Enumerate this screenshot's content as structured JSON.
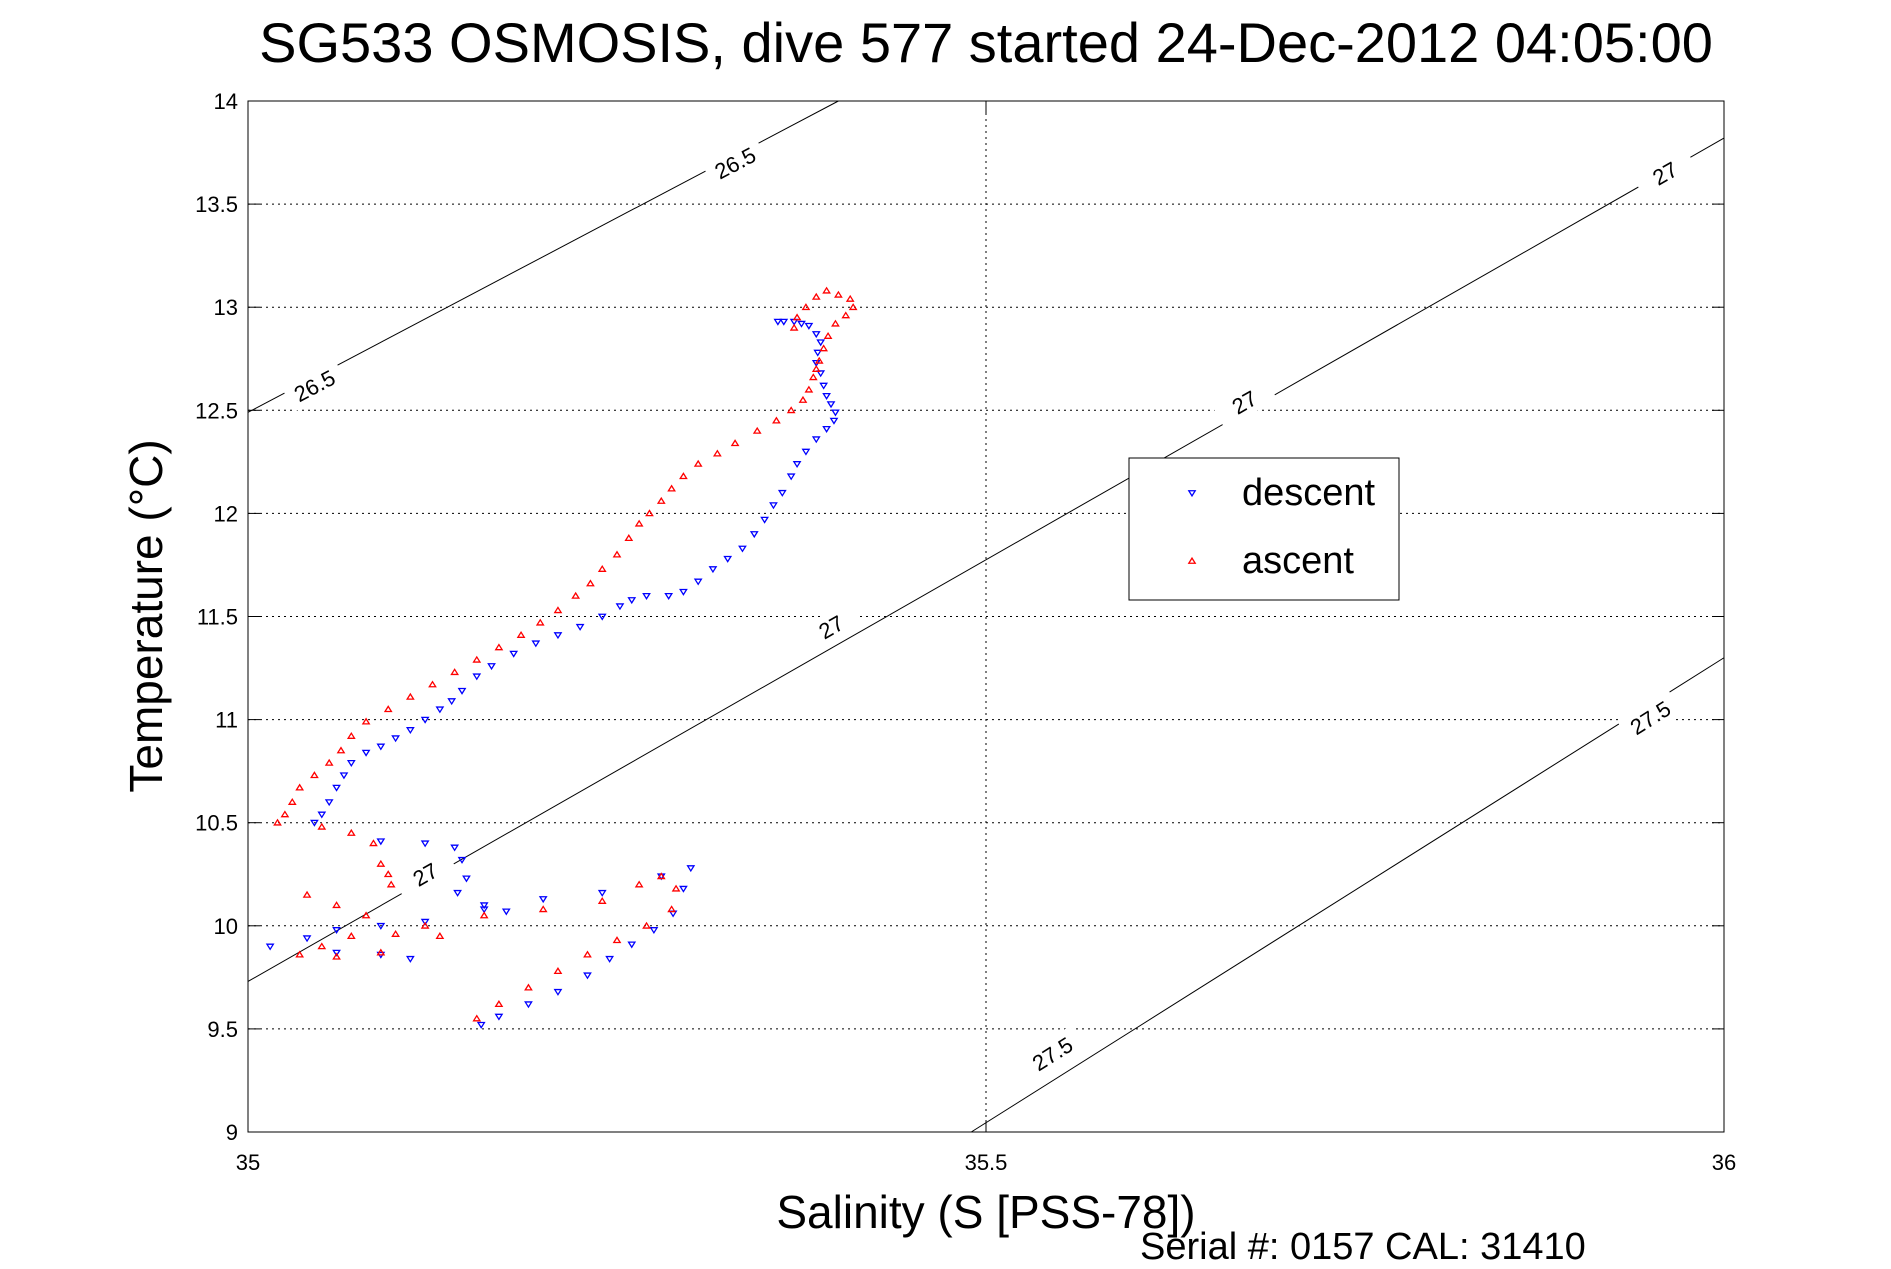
{
  "chart_data": {
    "type": "scatter",
    "title": "SG533 OSMOSIS, dive 577 started 24-Dec-2012 04:05:00",
    "xlabel": "Salinity (S [PSS-78])",
    "ylabel": "Temperature (°C)",
    "xlim": [
      35,
      36
    ],
    "ylim": [
      9,
      14
    ],
    "xticks": [
      "35",
      "35.5",
      "36"
    ],
    "yticks": [
      "9",
      "9.5",
      "10",
      "10.5",
      "11",
      "11.5",
      "12",
      "12.5",
      "13",
      "13.5",
      "14"
    ],
    "xtick_values": [
      35,
      35.5,
      36
    ],
    "ytick_values": [
      9,
      9.5,
      10,
      10.5,
      11,
      11.5,
      12,
      12.5,
      13,
      13.5,
      14
    ],
    "grid": true,
    "legend_position": "upper-right-middle",
    "footer": "Serial #: 0157  CAL: 31410",
    "isopycnals": [
      {
        "label": "26.5",
        "points": [
          [
            35,
            12.49
          ],
          [
            35.4,
            14.0
          ]
        ],
        "label_positions": [
          [
            35.045,
            12.62
          ],
          [
            35.33,
            13.7
          ]
        ]
      },
      {
        "label": "27",
        "points": [
          [
            35,
            9.73
          ],
          [
            36,
            13.82
          ]
        ],
        "label_positions": [
          [
            35.12,
            10.25
          ],
          [
            35.395,
            11.45
          ],
          [
            35.675,
            12.54
          ],
          [
            35.96,
            13.65
          ]
        ]
      },
      {
        "label": "27.5",
        "points": [
          [
            35.49,
            9.0
          ],
          [
            36,
            11.3
          ]
        ],
        "label_positions": [
          [
            35.545,
            9.38
          ],
          [
            35.95,
            11.01
          ]
        ]
      }
    ],
    "series": [
      {
        "name": "descent",
        "color": "#0000ff",
        "marker": "triangle-down",
        "points": [
          [
            35.359,
            12.93
          ],
          [
            35.363,
            12.93
          ],
          [
            35.37,
            12.93
          ],
          [
            35.375,
            12.92
          ],
          [
            35.38,
            12.91
          ],
          [
            35.385,
            12.87
          ],
          [
            35.388,
            12.83
          ],
          [
            35.386,
            12.78
          ],
          [
            35.385,
            12.73
          ],
          [
            35.388,
            12.68
          ],
          [
            35.39,
            12.62
          ],
          [
            35.392,
            12.57
          ],
          [
            35.395,
            12.53
          ],
          [
            35.398,
            12.49
          ],
          [
            35.397,
            12.45
          ],
          [
            35.392,
            12.41
          ],
          [
            35.385,
            12.36
          ],
          [
            35.378,
            12.3
          ],
          [
            35.372,
            12.24
          ],
          [
            35.368,
            12.18
          ],
          [
            35.362,
            12.1
          ],
          [
            35.356,
            12.04
          ],
          [
            35.35,
            11.97
          ],
          [
            35.343,
            11.9
          ],
          [
            35.335,
            11.83
          ],
          [
            35.325,
            11.78
          ],
          [
            35.315,
            11.73
          ],
          [
            35.305,
            11.67
          ],
          [
            35.295,
            11.62
          ],
          [
            35.285,
            11.6
          ],
          [
            35.27,
            11.6
          ],
          [
            35.26,
            11.58
          ],
          [
            35.252,
            11.55
          ],
          [
            35.24,
            11.5
          ],
          [
            35.225,
            11.45
          ],
          [
            35.21,
            11.41
          ],
          [
            35.195,
            11.37
          ],
          [
            35.18,
            11.32
          ],
          [
            35.165,
            11.26
          ],
          [
            35.155,
            11.21
          ],
          [
            35.145,
            11.14
          ],
          [
            35.138,
            11.09
          ],
          [
            35.13,
            11.05
          ],
          [
            35.12,
            11.0
          ],
          [
            35.11,
            10.95
          ],
          [
            35.1,
            10.91
          ],
          [
            35.09,
            10.87
          ],
          [
            35.08,
            10.84
          ],
          [
            35.07,
            10.79
          ],
          [
            35.065,
            10.73
          ],
          [
            35.06,
            10.67
          ],
          [
            35.055,
            10.6
          ],
          [
            35.05,
            10.54
          ],
          [
            35.045,
            10.5
          ],
          [
            35.09,
            10.41
          ],
          [
            35.12,
            10.4
          ],
          [
            35.14,
            10.38
          ],
          [
            35.145,
            10.32
          ],
          [
            35.148,
            10.23
          ],
          [
            35.142,
            10.16
          ],
          [
            35.16,
            10.08
          ],
          [
            35.175,
            10.07
          ],
          [
            35.12,
            10.02
          ],
          [
            35.09,
            10.0
          ],
          [
            35.06,
            9.98
          ],
          [
            35.04,
            9.94
          ],
          [
            35.015,
            9.9
          ],
          [
            35.06,
            9.87
          ],
          [
            35.09,
            9.86
          ],
          [
            35.11,
            9.84
          ],
          [
            35.16,
            10.1
          ],
          [
            35.2,
            10.13
          ],
          [
            35.24,
            10.16
          ],
          [
            35.28,
            10.24
          ],
          [
            35.3,
            10.28
          ],
          [
            35.295,
            10.18
          ],
          [
            35.288,
            10.06
          ],
          [
            35.275,
            9.98
          ],
          [
            35.26,
            9.91
          ],
          [
            35.245,
            9.84
          ],
          [
            35.23,
            9.76
          ],
          [
            35.21,
            9.68
          ],
          [
            35.19,
            9.62
          ],
          [
            35.17,
            9.56
          ],
          [
            35.158,
            9.52
          ]
        ]
      },
      {
        "name": "ascent",
        "color": "#ff0000",
        "marker": "triangle-up",
        "points": [
          [
            35.37,
            12.9
          ],
          [
            35.372,
            12.95
          ],
          [
            35.378,
            13.0
          ],
          [
            35.385,
            13.05
          ],
          [
            35.392,
            13.08
          ],
          [
            35.4,
            13.06
          ],
          [
            35.408,
            13.04
          ],
          [
            35.41,
            13.0
          ],
          [
            35.405,
            12.96
          ],
          [
            35.398,
            12.92
          ],
          [
            35.393,
            12.86
          ],
          [
            35.39,
            12.8
          ],
          [
            35.387,
            12.74
          ],
          [
            35.385,
            12.7
          ],
          [
            35.383,
            12.66
          ],
          [
            35.38,
            12.6
          ],
          [
            35.376,
            12.55
          ],
          [
            35.368,
            12.5
          ],
          [
            35.358,
            12.45
          ],
          [
            35.345,
            12.4
          ],
          [
            35.33,
            12.34
          ],
          [
            35.318,
            12.29
          ],
          [
            35.305,
            12.24
          ],
          [
            35.295,
            12.18
          ],
          [
            35.287,
            12.12
          ],
          [
            35.28,
            12.06
          ],
          [
            35.272,
            12.0
          ],
          [
            35.265,
            11.95
          ],
          [
            35.258,
            11.88
          ],
          [
            35.25,
            11.8
          ],
          [
            35.24,
            11.73
          ],
          [
            35.232,
            11.66
          ],
          [
            35.222,
            11.6
          ],
          [
            35.21,
            11.53
          ],
          [
            35.198,
            11.47
          ],
          [
            35.185,
            11.41
          ],
          [
            35.17,
            11.35
          ],
          [
            35.155,
            11.29
          ],
          [
            35.14,
            11.23
          ],
          [
            35.125,
            11.17
          ],
          [
            35.11,
            11.11
          ],
          [
            35.095,
            11.05
          ],
          [
            35.08,
            10.99
          ],
          [
            35.07,
            10.92
          ],
          [
            35.063,
            10.85
          ],
          [
            35.055,
            10.79
          ],
          [
            35.045,
            10.73
          ],
          [
            35.035,
            10.67
          ],
          [
            35.03,
            10.6
          ],
          [
            35.025,
            10.54
          ],
          [
            35.02,
            10.5
          ],
          [
            35.05,
            10.48
          ],
          [
            35.07,
            10.45
          ],
          [
            35.085,
            10.4
          ],
          [
            35.09,
            10.3
          ],
          [
            35.095,
            10.25
          ],
          [
            35.097,
            10.2
          ],
          [
            35.12,
            10.0
          ],
          [
            35.16,
            10.05
          ],
          [
            35.2,
            10.08
          ],
          [
            35.24,
            10.12
          ],
          [
            35.265,
            10.2
          ],
          [
            35.28,
            10.24
          ],
          [
            35.29,
            10.18
          ],
          [
            35.287,
            10.08
          ],
          [
            35.27,
            10.0
          ],
          [
            35.25,
            9.93
          ],
          [
            35.23,
            9.86
          ],
          [
            35.21,
            9.78
          ],
          [
            35.19,
            9.7
          ],
          [
            35.17,
            9.62
          ],
          [
            35.155,
            9.55
          ],
          [
            35.13,
            9.95
          ],
          [
            35.1,
            9.96
          ],
          [
            35.07,
            9.95
          ],
          [
            35.05,
            9.9
          ],
          [
            35.035,
            9.86
          ],
          [
            35.06,
            9.85
          ],
          [
            35.09,
            9.87
          ],
          [
            35.08,
            10.05
          ],
          [
            35.06,
            10.1
          ],
          [
            35.04,
            10.15
          ]
        ]
      }
    ]
  }
}
